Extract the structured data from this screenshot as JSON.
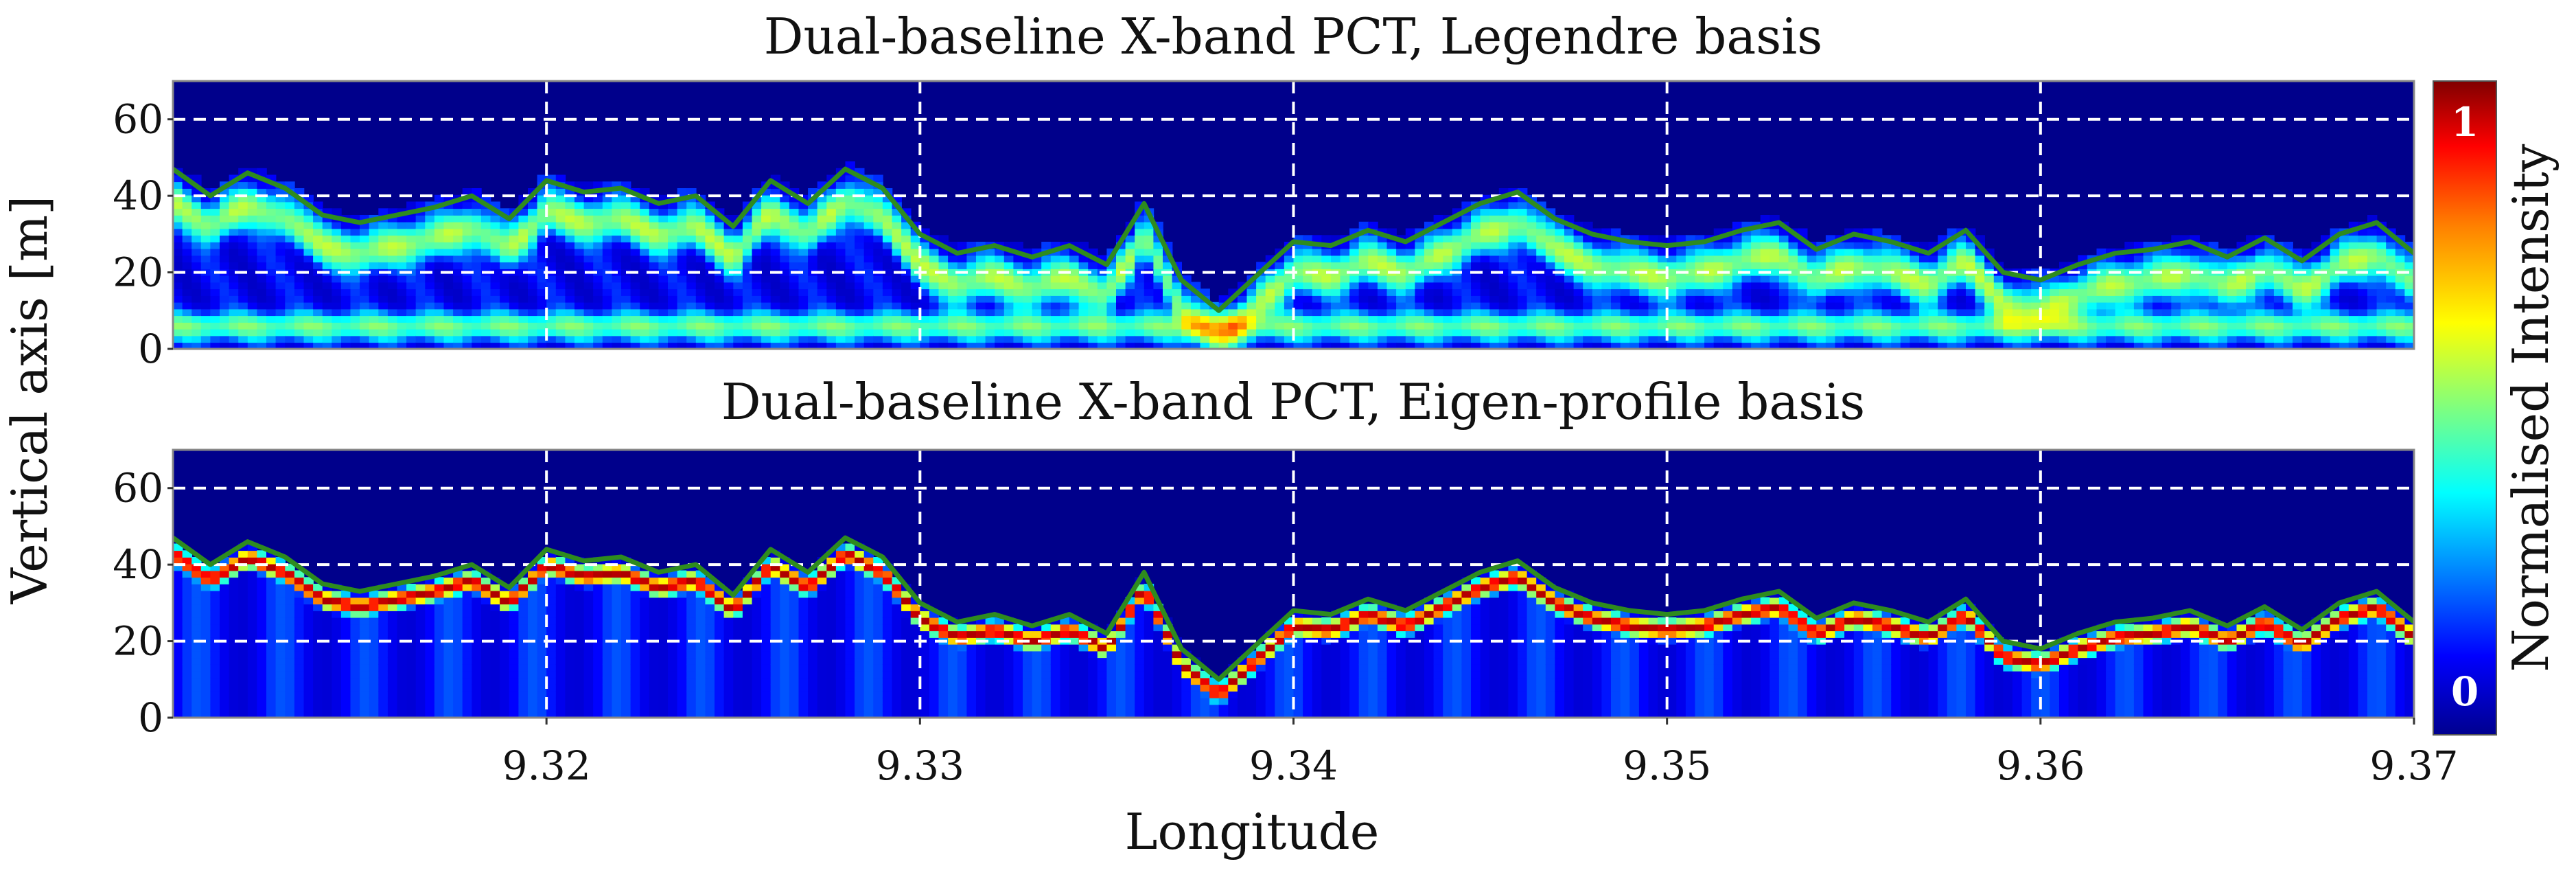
{
  "chart_data": [
    {
      "type": "heatmap",
      "title": "Dual-baseline X-band PCT, Legendre basis",
      "xlabel": "Longitude",
      "ylabel": "Vertical axis [m]",
      "xlim": [
        9.31,
        9.37
      ],
      "ylim": [
        0,
        70
      ],
      "xticks": [
        "9.32",
        "9.33",
        "9.34",
        "9.35",
        "9.36",
        "9.37"
      ],
      "yticks": [
        "0",
        "20",
        "40",
        "60"
      ],
      "grid": true,
      "series": [
        {
          "name": "",
          "color": "#2e8b1e",
          "x": [
            9.31,
            9.311,
            9.312,
            9.313,
            9.314,
            9.315,
            9.316,
            9.317,
            9.318,
            9.319,
            9.32,
            9.321,
            9.322,
            9.323,
            9.324,
            9.325,
            9.326,
            9.327,
            9.328,
            9.329,
            9.33,
            9.331,
            9.332,
            9.333,
            9.334,
            9.335,
            9.336,
            9.337,
            9.338,
            9.339,
            9.34,
            9.341,
            9.342,
            9.343,
            9.344,
            9.345,
            9.346,
            9.347,
            9.348,
            9.349,
            9.35,
            9.351,
            9.352,
            9.353,
            9.354,
            9.355,
            9.356,
            9.357,
            9.358,
            9.359,
            9.36,
            9.361,
            9.362,
            9.363,
            9.364,
            9.365,
            9.366,
            9.367,
            9.368,
            9.369,
            9.37
          ],
          "y": [
            47,
            40,
            46,
            42,
            35,
            33,
            35,
            37,
            40,
            34,
            44,
            41,
            42,
            38,
            40,
            32,
            44,
            38,
            47,
            42,
            30,
            25,
            27,
            24,
            27,
            22,
            38,
            18,
            10,
            19,
            28,
            27,
            31,
            28,
            33,
            38,
            41,
            34,
            30,
            28,
            27,
            28,
            31,
            33,
            26,
            30,
            28,
            25,
            31,
            20,
            18,
            22,
            25,
            26,
            28,
            24,
            29,
            23,
            30,
            33,
            25
          ]
        }
      ]
    },
    {
      "type": "heatmap",
      "title": "Dual-baseline X-band PCT, Eigen-profile basis",
      "xlabel": "Longitude",
      "ylabel": "Vertical axis [m]",
      "xlim": [
        9.31,
        9.37
      ],
      "ylim": [
        0,
        70
      ],
      "xticks": [
        "9.32",
        "9.33",
        "9.34",
        "9.35",
        "9.36",
        "9.37"
      ],
      "yticks": [
        "0",
        "20",
        "40",
        "60"
      ],
      "grid": true,
      "series": [
        {
          "name": "",
          "color": "#2e8b1e",
          "x": [
            9.31,
            9.311,
            9.312,
            9.313,
            9.314,
            9.315,
            9.316,
            9.317,
            9.318,
            9.319,
            9.32,
            9.321,
            9.322,
            9.323,
            9.324,
            9.325,
            9.326,
            9.327,
            9.328,
            9.329,
            9.33,
            9.331,
            9.332,
            9.333,
            9.334,
            9.335,
            9.336,
            9.337,
            9.338,
            9.339,
            9.34,
            9.341,
            9.342,
            9.343,
            9.344,
            9.345,
            9.346,
            9.347,
            9.348,
            9.349,
            9.35,
            9.351,
            9.352,
            9.353,
            9.354,
            9.355,
            9.356,
            9.357,
            9.358,
            9.359,
            9.36,
            9.361,
            9.362,
            9.363,
            9.364,
            9.365,
            9.366,
            9.367,
            9.368,
            9.369,
            9.37
          ],
          "y": [
            47,
            40,
            46,
            42,
            35,
            33,
            35,
            37,
            40,
            34,
            44,
            41,
            42,
            38,
            40,
            32,
            44,
            38,
            47,
            42,
            30,
            25,
            27,
            24,
            27,
            22,
            38,
            18,
            10,
            19,
            28,
            27,
            31,
            28,
            33,
            38,
            41,
            34,
            30,
            28,
            27,
            28,
            31,
            33,
            26,
            30,
            28,
            25,
            31,
            20,
            18,
            22,
            25,
            26,
            28,
            24,
            29,
            23,
            30,
            33,
            25
          ]
        }
      ]
    }
  ],
  "colorbar": {
    "label": "Normalised Intensity",
    "min_label": "0",
    "max_label": "1",
    "colors": [
      "#00008f",
      "#0000ff",
      "#00ffff",
      "#7fff7f",
      "#ffff00",
      "#ff7f00",
      "#ff0000",
      "#800000"
    ]
  },
  "colors": {
    "background": "#00008b",
    "grid": "#ffffff",
    "canopy_line": "#2e8b1e"
  }
}
